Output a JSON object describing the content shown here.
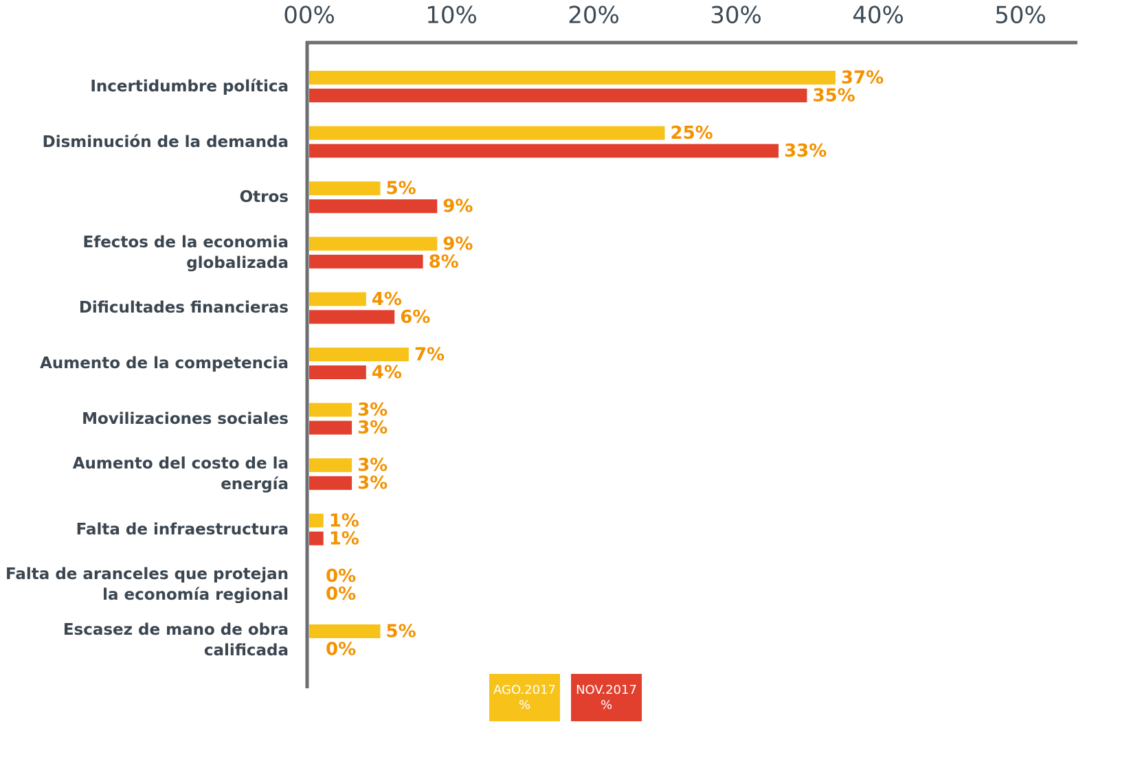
{
  "chart_data": {
    "type": "bar",
    "orientation": "horizontal",
    "categories": [
      "Incertidumbre política",
      "Disminución de la demanda",
      "Otros",
      "Efectos de la economia globalizada",
      "Dificultades financieras",
      "Aumento de la competencia",
      "Movilizaciones sociales",
      "Aumento del costo de la energía",
      "Falta de infraestructura",
      "Falta de aranceles que protejan\nla economía regional",
      "Escasez de mano de obra calificada"
    ],
    "series": [
      {
        "name": "AGO.2017\n%",
        "color": "#f7c21a",
        "values": [
          37,
          25,
          5,
          9,
          4,
          7,
          3,
          3,
          1,
          0,
          5
        ],
        "value_labels": [
          "37%",
          "25%",
          "5%",
          "9%",
          "4%",
          "7%",
          "3%",
          "3%",
          "1%",
          "0%",
          "5%"
        ]
      },
      {
        "name": "NOV.2017\n%",
        "color": "#e2402f",
        "values": [
          35,
          33,
          9,
          8,
          6,
          4,
          3,
          3,
          1,
          0,
          0
        ],
        "value_labels": [
          "35%",
          "33%",
          "9%",
          "8%",
          "6%",
          "4%",
          "3%",
          "3%",
          "1%",
          "0%",
          "0%"
        ]
      }
    ],
    "xlim": [
      0,
      54
    ],
    "xticks": [
      {
        "value": 0,
        "label": "00%"
      },
      {
        "value": 10,
        "label": "10%"
      },
      {
        "value": 20,
        "label": "20%"
      },
      {
        "value": 30,
        "label": "30%"
      },
      {
        "value": 40,
        "label": "40%"
      },
      {
        "value": 50,
        "label": "50%"
      }
    ],
    "grid": false
  }
}
